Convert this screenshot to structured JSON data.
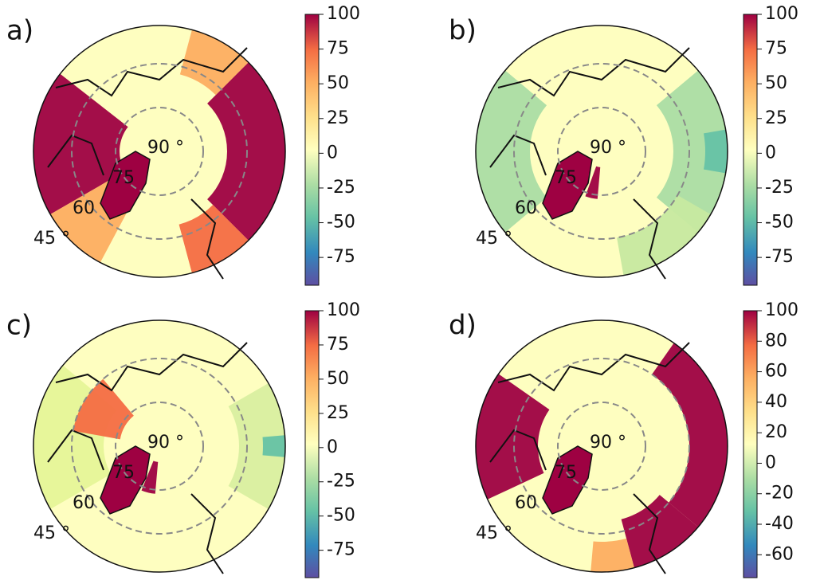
{
  "panels": [
    {
      "label": "a)",
      "lat_labels": [
        "90 °",
        "75",
        "60",
        "45 °"
      ],
      "colorbar": {
        "lim": [
          -95,
          100
        ],
        "ticks": [
          100,
          75,
          50,
          25,
          0,
          -25,
          -50,
          -75
        ]
      }
    },
    {
      "label": "b)",
      "lat_labels": [
        "90 °",
        "75",
        "60",
        "45 °"
      ],
      "colorbar": {
        "lim": [
          -95,
          100
        ],
        "ticks": [
          100,
          75,
          50,
          25,
          0,
          -25,
          -50,
          -75
        ]
      }
    },
    {
      "label": "c)",
      "lat_labels": [
        "90 °",
        "75",
        "60",
        "45 °"
      ],
      "colorbar": {
        "lim": [
          -95,
          100
        ],
        "ticks": [
          100,
          75,
          50,
          25,
          0,
          -25,
          -50,
          -75
        ]
      }
    },
    {
      "label": "d)",
      "lat_labels": [
        "90 °",
        "75",
        "60",
        "45 °"
      ],
      "colorbar": {
        "lim": [
          -75,
          100
        ],
        "ticks": [
          100,
          80,
          60,
          40,
          20,
          0,
          -20,
          -40,
          -60
        ]
      }
    }
  ]
}
